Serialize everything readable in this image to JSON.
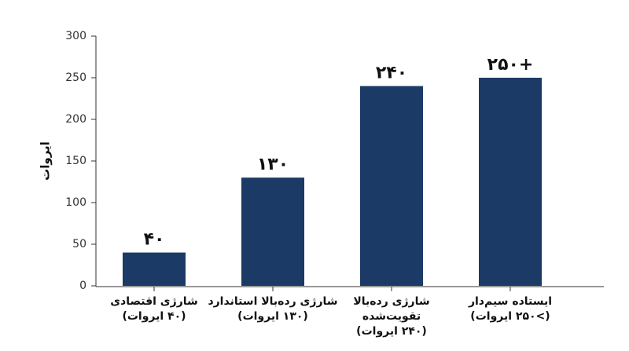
{
  "chart_data": {
    "type": "bar",
    "y_label": "ایروات",
    "categories": [
      [
        "شارژی اقتصادی",
        "(۴۰ ایروات)"
      ],
      [
        "شارژی رده‌بالا استاندارد",
        "(۱۳۰ ایروات)"
      ],
      [
        "شارژی رده‌بالا",
        "تقویت‌شده",
        "(۲۴۰ ایروات)"
      ],
      [
        "ایستاده سیم‌دار",
        "(>۲۵۰ ایروات)"
      ]
    ],
    "values": [
      40,
      130,
      240,
      250
    ],
    "value_labels": [
      "۴۰",
      "۱۳۰",
      "۲۴۰",
      "۲۵۰+"
    ],
    "color": "#1b3a66",
    "ylim": [
      0,
      300
    ],
    "yticks": [
      0,
      50,
      100,
      150,
      200,
      250,
      300
    ],
    "grid": false
  }
}
